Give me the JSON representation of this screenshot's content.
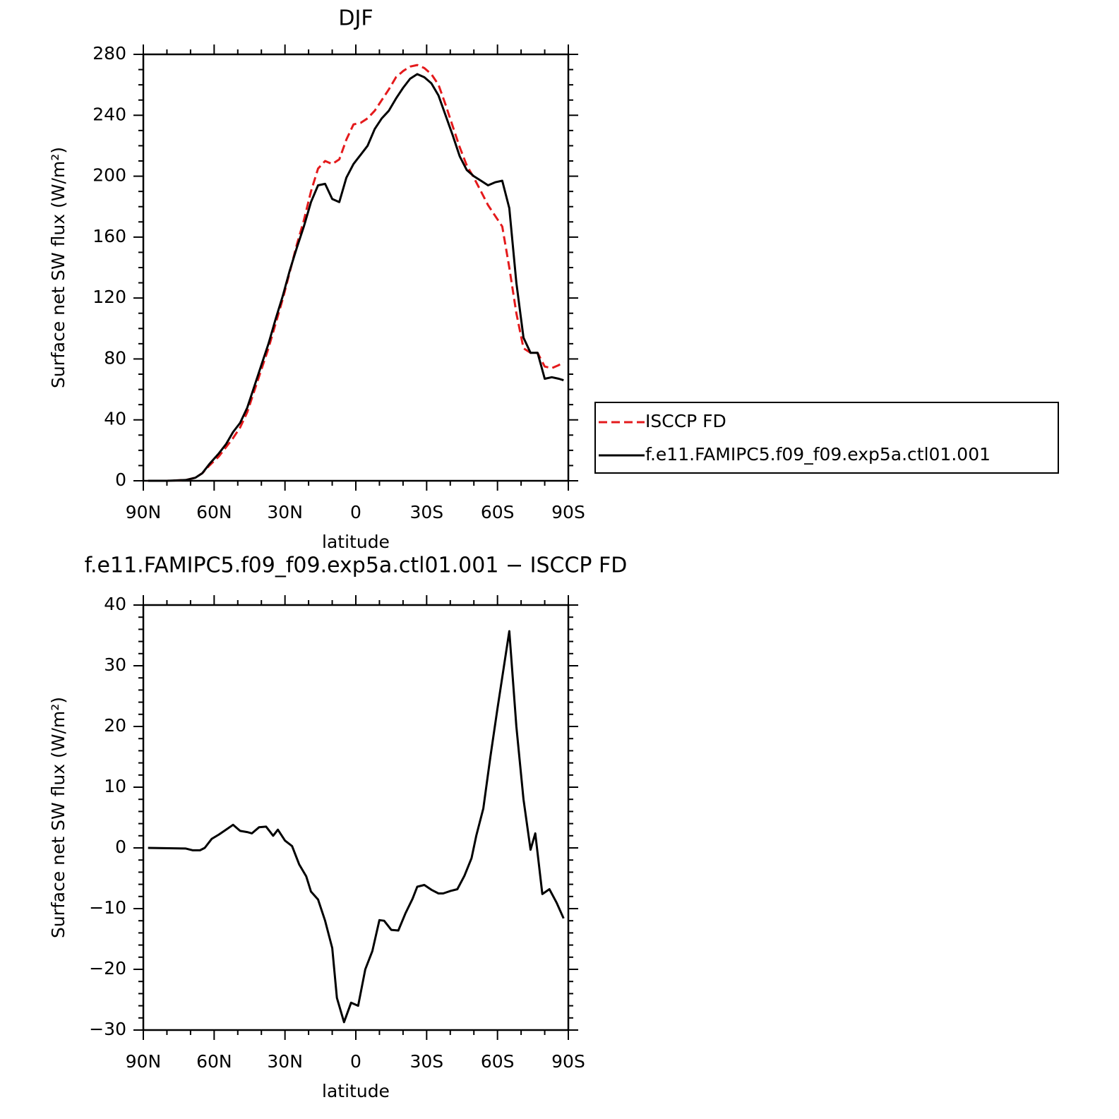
{
  "chart_data": [
    {
      "type": "line",
      "title": "DJF",
      "xlabel": "latitude",
      "ylabel": "Surface net SW flux (W/m²)",
      "x": [
        88,
        80,
        72,
        68,
        65,
        62,
        58,
        55,
        52,
        49,
        46,
        43,
        40,
        37,
        34,
        31,
        28,
        25,
        22,
        19,
        16,
        13,
        10,
        7,
        4,
        1,
        -2,
        -5,
        -8,
        -11,
        -14,
        -17,
        -20,
        -23,
        -26,
        -29,
        -32,
        -35,
        -38,
        -41,
        -44,
        -47,
        -50,
        -53,
        -56,
        -59,
        -62,
        -65,
        -68,
        -71,
        -74,
        -77,
        -80,
        -83,
        -86,
        -88
      ],
      "series": [
        {
          "name": "ISCCP FD",
          "color": "#e41a1c",
          "dash": true,
          "values": [
            0,
            0,
            0.5,
            2,
            5,
            10,
            16,
            22,
            28,
            35,
            45,
            59,
            73,
            87,
            103,
            119,
            137,
            155,
            171,
            190,
            205,
            210,
            208,
            211,
            224,
            234,
            235,
            238,
            243,
            250,
            257,
            265,
            269,
            272,
            273,
            271,
            267,
            260,
            247,
            233,
            219,
            207,
            199,
            190,
            181,
            174,
            167,
            140,
            110,
            87,
            84,
            84,
            75,
            74,
            76,
            78
          ]
        },
        {
          "name": "f.e11.FAMIPC5.f09_f09.exp5a.ctl01.001",
          "color": "#000000",
          "dash": false,
          "values": [
            0,
            0,
            0.5,
            2,
            5,
            11,
            18,
            24,
            32,
            38,
            48,
            62,
            76,
            90,
            106,
            121,
            138,
            153,
            167,
            183,
            194,
            195,
            185,
            183,
            199,
            208,
            214,
            220,
            231,
            238,
            243,
            251,
            258,
            264,
            267,
            265,
            261,
            253,
            240,
            227,
            213,
            204,
            200,
            197,
            194,
            196,
            197,
            179,
            130,
            94,
            84,
            84,
            67,
            68,
            67,
            66
          ]
        }
      ],
      "xlim": [
        90,
        -90
      ],
      "xticks": [
        {
          "value": 90,
          "label": "90N"
        },
        {
          "value": 60,
          "label": "60N"
        },
        {
          "value": 30,
          "label": "30N"
        },
        0,
        {
          "value": -30,
          "label": "30S"
        },
        {
          "value": -60,
          "label": "60S"
        },
        {
          "value": -90,
          "label": "90S"
        }
      ],
      "ylim": [
        0,
        280
      ],
      "yticks": [
        0,
        40,
        80,
        120,
        160,
        200,
        240,
        280
      ],
      "legend": "right"
    },
    {
      "type": "line",
      "title": "f.e11.FAMIPC5.f09_f09.exp5a.ctl01.001 − ISCCP FD",
      "xlabel": "latitude",
      "ylabel": "Surface net SW flux (W/m²)",
      "x": [
        88,
        72,
        69,
        66,
        64,
        61,
        58,
        55,
        52,
        49,
        46,
        44,
        41,
        38,
        35,
        33,
        30,
        27,
        24,
        21,
        19,
        16,
        13,
        10,
        8,
        5,
        2,
        -1,
        -4,
        -7,
        -10,
        -12,
        -15,
        -18,
        -21,
        -24,
        -26,
        -29,
        -32,
        -35,
        -37,
        -40,
        -43,
        -46,
        -49,
        -51,
        -54,
        -57,
        -60,
        -65,
        -68,
        -71,
        -74,
        -76,
        -79,
        -82,
        -85,
        -88
      ],
      "values": [
        0,
        -0.1,
        -0.4,
        -0.4,
        0,
        1.5,
        2.2,
        3,
        3.8,
        2.8,
        2.6,
        2.4,
        3.4,
        3.5,
        2,
        3,
        1.2,
        0.3,
        -2.7,
        -4.7,
        -7.2,
        -8.5,
        -12,
        -16.5,
        -24.7,
        -28.7,
        -25.5,
        -26,
        -20,
        -17,
        -11.9,
        -12,
        -13.5,
        -13.6,
        -10.8,
        -8.4,
        -6.4,
        -6.1,
        -6.9,
        -7.5,
        -7.5,
        -7.1,
        -6.8,
        -4.6,
        -1.7,
        2,
        6.5,
        15,
        23,
        35.7,
        20,
        8,
        -0.3,
        2.4,
        -7.6,
        -6.8,
        -9,
        -11.6
      ],
      "color": "#000000",
      "xlim": [
        90,
        -90
      ],
      "xticks": [
        {
          "value": 90,
          "label": "90N"
        },
        {
          "value": 60,
          "label": "60N"
        },
        {
          "value": 30,
          "label": "30N"
        },
        0,
        {
          "value": -30,
          "label": "30S"
        },
        {
          "value": -60,
          "label": "60S"
        },
        {
          "value": -90,
          "label": "90S"
        }
      ],
      "ylim": [
        -30,
        40
      ],
      "yticks": [
        {
          "value": -30,
          "label": "−30"
        },
        {
          "value": -20,
          "label": "−20"
        },
        {
          "value": -10,
          "label": "−10"
        },
        0,
        10,
        20,
        30,
        40
      ]
    }
  ]
}
